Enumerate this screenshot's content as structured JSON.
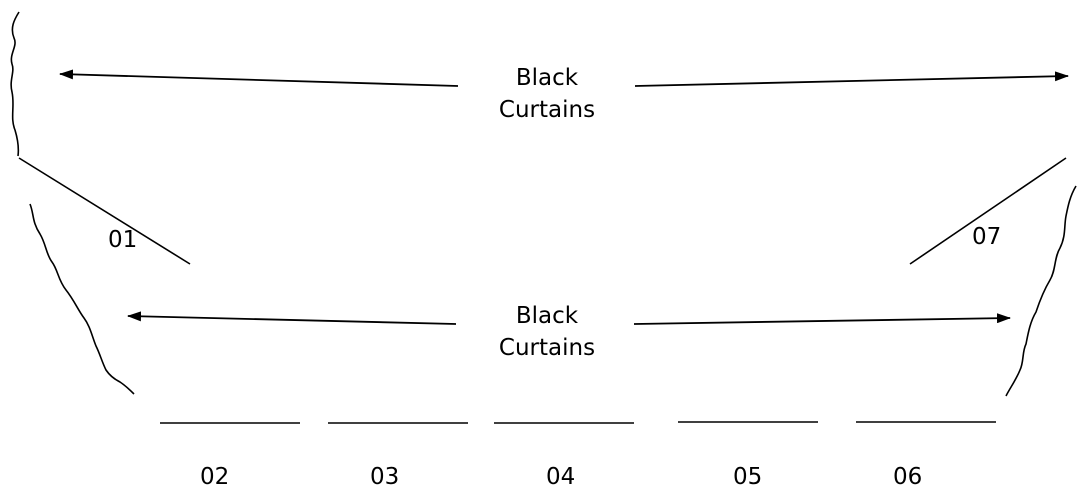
{
  "colors": {
    "ink": "#000000",
    "background": "#ffffff"
  },
  "curtain_labels": {
    "upper": {
      "line1": "Black",
      "line2": "Curtains"
    },
    "lower": {
      "line1": "Black",
      "line2": "Curtains"
    }
  },
  "positions": {
    "p01": "01",
    "p02": "02",
    "p03": "03",
    "p04": "04",
    "p05": "05",
    "p06": "06",
    "p07": "07"
  }
}
